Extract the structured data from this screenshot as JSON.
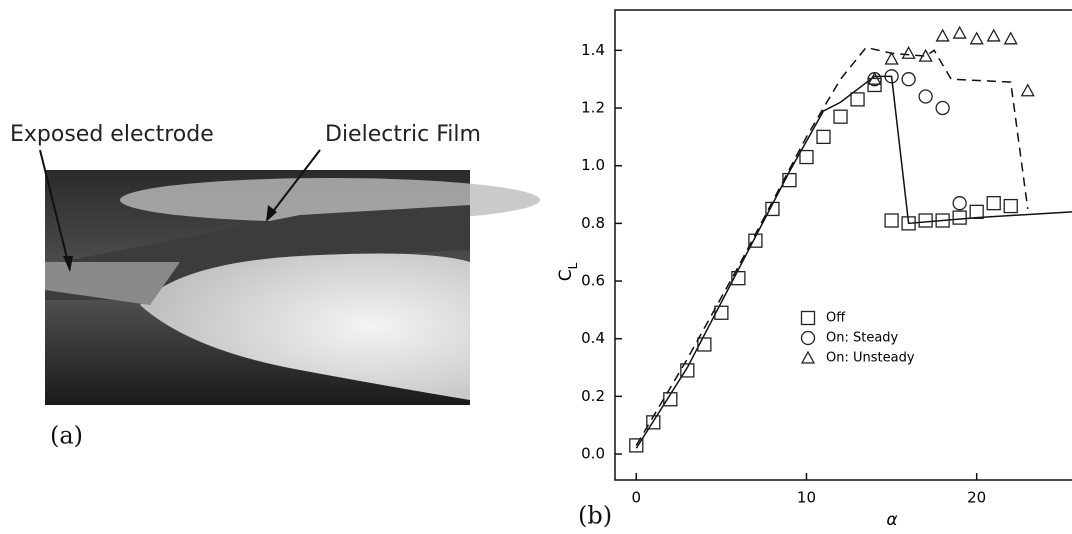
{
  "photo": {
    "label_left": "Exposed electrode",
    "label_right": "Dielectric Film",
    "caption": "(a)"
  },
  "chart_data": {
    "type": "scatter",
    "panel_label": "(b)",
    "xlabel": "α",
    "ylabel": "C",
    "ylabel_sub": "L",
    "xlim": [
      -1.25,
      25.6
    ],
    "ylim": [
      -0.09,
      1.54
    ],
    "xticks": [
      0,
      10,
      20
    ],
    "yticks": [
      {
        "value": 0,
        "label": "0.0"
      },
      {
        "value": 0.2,
        "label": "0.2"
      },
      {
        "value": 0.4,
        "label": "0.4"
      },
      {
        "value": 0.6,
        "label": "0.6"
      },
      {
        "value": 0.8,
        "label": "0.8"
      },
      {
        "value": 1.0,
        "label": "1.0"
      },
      {
        "value": 1.2,
        "label": "1.2"
      },
      {
        "value": 1.4,
        "label": "1.4"
      }
    ],
    "series": [
      {
        "name": "Off",
        "marker": "square",
        "color": "#222222",
        "x": [
          0,
          1,
          2,
          3,
          4,
          5,
          6,
          7,
          8,
          9,
          10,
          11,
          12,
          13,
          14,
          15,
          16,
          17,
          18,
          19,
          20,
          21,
          22
        ],
        "y": [
          0.03,
          0.11,
          0.19,
          0.29,
          0.38,
          0.49,
          0.61,
          0.74,
          0.85,
          0.95,
          1.03,
          1.1,
          1.17,
          1.23,
          1.28,
          0.81,
          0.8,
          0.81,
          0.81,
          0.82,
          0.84,
          0.87,
          0.86
        ]
      },
      {
        "name": "On: Steady",
        "marker": "circle",
        "color": "#222222",
        "x": [
          14,
          15,
          16,
          17,
          18,
          19
        ],
        "y": [
          1.3,
          1.31,
          1.3,
          1.24,
          1.2,
          0.87
        ]
      },
      {
        "name": "On: Unsteady",
        "marker": "triangle",
        "color": "#222222",
        "x": [
          14,
          15,
          16,
          17,
          18,
          19,
          20,
          21,
          22,
          23
        ],
        "y": [
          1.3,
          1.37,
          1.39,
          1.38,
          1.45,
          1.46,
          1.44,
          1.45,
          1.44,
          1.26
        ]
      }
    ],
    "curves": [
      {
        "style": "solid",
        "x": [
          0,
          3,
          6,
          9,
          11,
          12,
          14,
          15,
          16,
          20,
          25.6
        ],
        "y": [
          0.02,
          0.3,
          0.64,
          0.98,
          1.19,
          1.22,
          1.31,
          1.31,
          0.8,
          0.82,
          0.84
        ]
      },
      {
        "style": "dashed",
        "x": [
          0,
          3,
          6,
          10,
          12,
          13.5,
          15,
          17,
          17.5,
          18.5,
          22,
          23
        ],
        "y": [
          0.03,
          0.33,
          0.65,
          1.1,
          1.3,
          1.41,
          1.39,
          1.38,
          1.4,
          1.3,
          1.29,
          0.85
        ]
      }
    ]
  }
}
